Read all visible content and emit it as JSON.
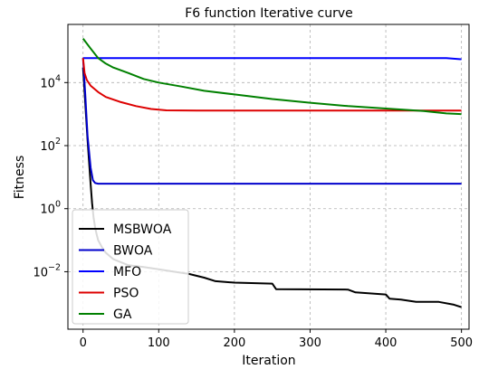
{
  "chart_data": {
    "type": "line",
    "title": "F6 function Iterative curve",
    "xlabel": "Iteration",
    "ylabel": "Fitness",
    "yscale": "log",
    "xlim": [
      -20,
      510
    ],
    "ylim": [
      0.00015,
      700000
    ],
    "xticks": [
      0,
      100,
      200,
      300,
      400,
      500
    ],
    "yticks": [
      {
        "value": 0.01,
        "base": "10",
        "exp": "−2"
      },
      {
        "value": 1,
        "base": "10",
        "exp": "0"
      },
      {
        "value": 100,
        "base": "10",
        "exp": "2"
      },
      {
        "value": 10000,
        "base": "10",
        "exp": "4"
      }
    ],
    "grid": true,
    "legend_position": "lower-left",
    "series": [
      {
        "name": "MSBWOA",
        "color": "#000000",
        "points": [
          [
            0,
            30000
          ],
          [
            2,
            5000
          ],
          [
            4,
            800
          ],
          [
            6,
            150
          ],
          [
            8,
            30
          ],
          [
            10,
            6
          ],
          [
            12,
            1.5
          ],
          [
            14,
            0.5
          ],
          [
            16,
            0.25
          ],
          [
            18,
            0.15
          ],
          [
            20,
            0.1
          ],
          [
            25,
            0.06
          ],
          [
            30,
            0.04
          ],
          [
            40,
            0.025
          ],
          [
            50,
            0.02
          ],
          [
            60,
            0.016
          ],
          [
            80,
            0.014
          ],
          [
            100,
            0.012
          ],
          [
            120,
            0.01
          ],
          [
            140,
            0.0085
          ],
          [
            160,
            0.0065
          ],
          [
            175,
            0.005
          ],
          [
            200,
            0.0045
          ],
          [
            250,
            0.0042
          ],
          [
            255,
            0.0028
          ],
          [
            350,
            0.0027
          ],
          [
            360,
            0.0022
          ],
          [
            400,
            0.0019
          ],
          [
            405,
            0.0014
          ],
          [
            420,
            0.0013
          ],
          [
            440,
            0.0011
          ],
          [
            470,
            0.0011
          ],
          [
            490,
            0.0009
          ],
          [
            500,
            0.00075
          ]
        ]
      },
      {
        "name": "BWOA",
        "color": "#0000cc",
        "points": [
          [
            0,
            60000
          ],
          [
            3,
            4000
          ],
          [
            6,
            200
          ],
          [
            10,
            20
          ],
          [
            13,
            8
          ],
          [
            16,
            6.5
          ],
          [
            20,
            6.2
          ],
          [
            100,
            6.2
          ],
          [
            500,
            6.2
          ]
        ]
      },
      {
        "name": "MFO",
        "color": "#0000ff",
        "points": [
          [
            0,
            60000
          ],
          [
            100,
            60000
          ],
          [
            200,
            60000
          ],
          [
            300,
            60000
          ],
          [
            400,
            60000
          ],
          [
            480,
            60000
          ],
          [
            500,
            55000
          ]
        ]
      },
      {
        "name": "PSO",
        "color": "#dd0000",
        "points": [
          [
            0,
            60000
          ],
          [
            2,
            20000
          ],
          [
            5,
            12000
          ],
          [
            10,
            8000
          ],
          [
            20,
            5000
          ],
          [
            30,
            3500
          ],
          [
            50,
            2400
          ],
          [
            70,
            1800
          ],
          [
            90,
            1450
          ],
          [
            110,
            1320
          ],
          [
            150,
            1300
          ],
          [
            300,
            1300
          ],
          [
            500,
            1300
          ]
        ]
      },
      {
        "name": "GA",
        "color": "#008000",
        "points": [
          [
            0,
            250000
          ],
          [
            10,
            120000
          ],
          [
            20,
            60000
          ],
          [
            30,
            40000
          ],
          [
            40,
            30000
          ],
          [
            60,
            20000
          ],
          [
            80,
            13000
          ],
          [
            100,
            10000
          ],
          [
            130,
            7500
          ],
          [
            160,
            5500
          ],
          [
            200,
            4200
          ],
          [
            250,
            3000
          ],
          [
            300,
            2300
          ],
          [
            350,
            1800
          ],
          [
            400,
            1500
          ],
          [
            450,
            1250
          ],
          [
            480,
            1050
          ],
          [
            500,
            1000
          ]
        ]
      }
    ]
  }
}
